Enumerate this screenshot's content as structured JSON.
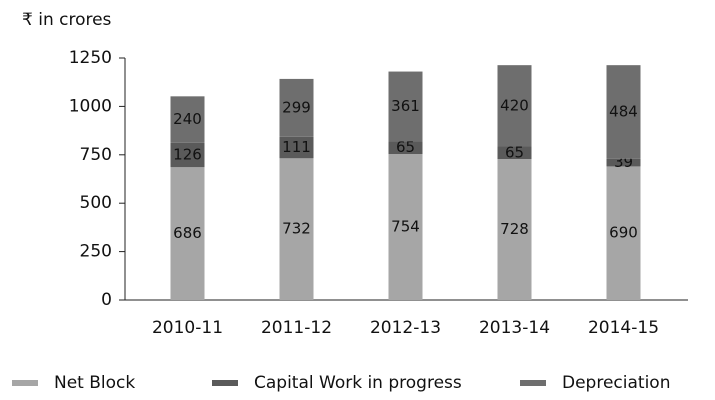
{
  "chart_data": {
    "type": "stacked_bar",
    "y_label": "₹ in crores",
    "categories": [
      "2010-11",
      "2011-12",
      "2012-13",
      "2013-14",
      "2014-15"
    ],
    "series": [
      {
        "name": "Net Block",
        "color": "#a6a6a6",
        "values": [
          686,
          732,
          754,
          728,
          690
        ]
      },
      {
        "name": "Capital Work in progress",
        "color": "#5a5a5a",
        "values": [
          126,
          111,
          65,
          65,
          39
        ]
      },
      {
        "name": "Depreciation",
        "color": "#6e6e6e",
        "values": [
          240,
          299,
          361,
          420,
          484
        ]
      }
    ],
    "ylim": [
      0,
      1250
    ],
    "yticks": [
      0,
      250,
      500,
      750,
      1000,
      1250
    ],
    "grid": false,
    "legend": "bottom"
  }
}
